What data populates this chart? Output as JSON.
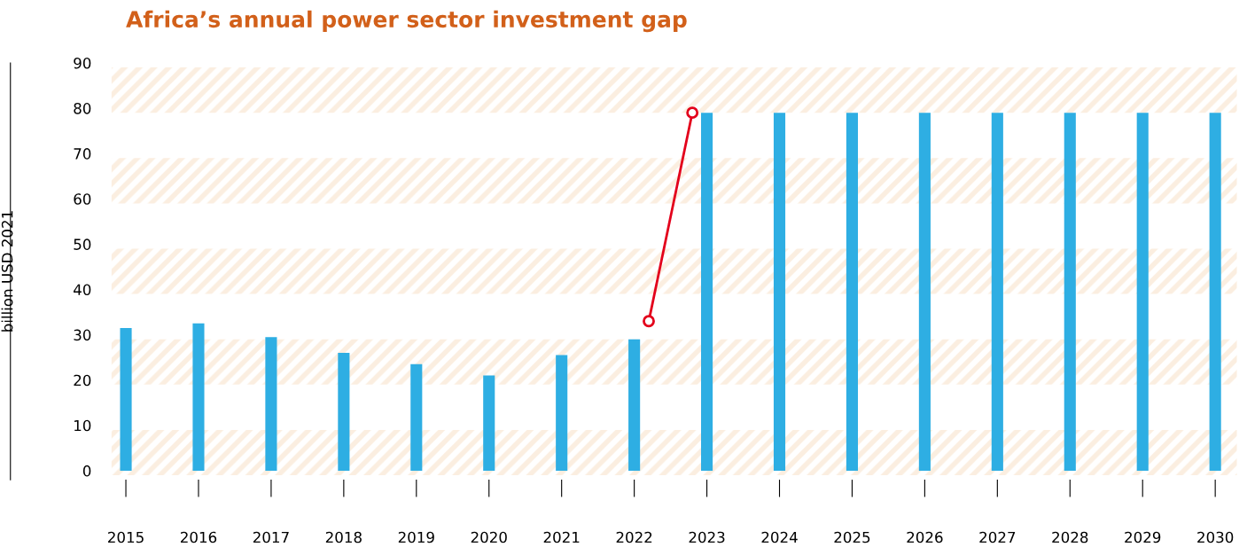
{
  "chart_data": {
    "type": "bar",
    "title": "Africa’s annual power sector investment gap",
    "ylabel": "billion USD 2021",
    "x": [
      2015,
      2016,
      2017,
      2018,
      2019,
      2020,
      2021,
      2022,
      2023,
      2024,
      2025,
      2026,
      2027,
      2028,
      2029,
      2030
    ],
    "series": [
      {
        "color": "#2eaee3",
        "values": [
          31.5,
          32.5,
          29.5,
          26,
          23.5,
          21,
          25.5,
          29,
          79,
          79,
          79,
          79,
          79,
          79,
          79,
          79
        ]
      },
      {
        "type": "line",
        "color": "#e3001b",
        "x": [
          2022.2,
          2022.8
        ],
        "values": [
          33,
          79
        ],
        "marker": "circle"
      }
    ],
    "xlim": [
      2014.8,
      2030.3
    ],
    "ylim": [
      -2,
      90
    ],
    "xticks": [
      2015,
      2016,
      2017,
      2018,
      2019,
      2020,
      2021,
      2022,
      2023,
      2024,
      2025,
      2026,
      2027,
      2028,
      2029,
      2030
    ],
    "yticks": [
      0,
      10,
      20,
      30,
      40,
      50,
      60,
      70,
      80,
      90
    ],
    "bands": [
      {
        "axis": "y",
        "from": -1,
        "to": 9,
        "color": "#fbeee0"
      },
      {
        "axis": "y",
        "from": 19,
        "to": 29,
        "color": "#fbeee0"
      },
      {
        "axis": "y",
        "from": 39,
        "to": 49,
        "color": "#fbeee0"
      },
      {
        "axis": "y",
        "from": 59,
        "to": 69,
        "color": "#fbeee0"
      },
      {
        "axis": "y",
        "from": 79,
        "to": 89,
        "color": "#fbeee0"
      }
    ],
    "grid": false,
    "legend": false
  }
}
